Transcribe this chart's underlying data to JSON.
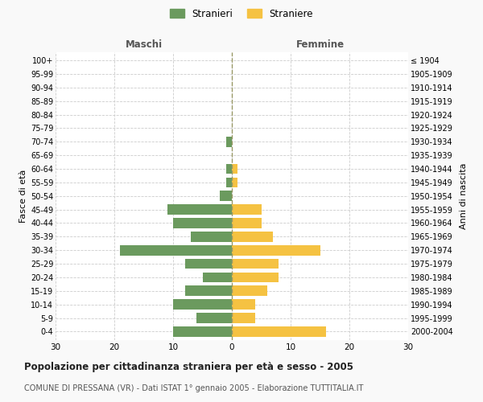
{
  "age_groups": [
    "0-4",
    "5-9",
    "10-14",
    "15-19",
    "20-24",
    "25-29",
    "30-34",
    "35-39",
    "40-44",
    "45-49",
    "50-54",
    "55-59",
    "60-64",
    "65-69",
    "70-74",
    "75-79",
    "80-84",
    "85-89",
    "90-94",
    "95-99",
    "100+"
  ],
  "birth_years": [
    "2000-2004",
    "1995-1999",
    "1990-1994",
    "1985-1989",
    "1980-1984",
    "1975-1979",
    "1970-1974",
    "1965-1969",
    "1960-1964",
    "1955-1959",
    "1950-1954",
    "1945-1949",
    "1940-1944",
    "1935-1939",
    "1930-1934",
    "1925-1929",
    "1920-1924",
    "1915-1919",
    "1910-1914",
    "1905-1909",
    "≤ 1904"
  ],
  "males": [
    10,
    6,
    10,
    8,
    5,
    8,
    19,
    7,
    10,
    11,
    2,
    1,
    1,
    0,
    1,
    0,
    0,
    0,
    0,
    0,
    0
  ],
  "females": [
    16,
    4,
    4,
    6,
    8,
    8,
    15,
    7,
    5,
    5,
    0,
    1,
    1,
    0,
    0,
    0,
    0,
    0,
    0,
    0,
    0
  ],
  "male_color": "#6b9a5e",
  "female_color": "#f5c242",
  "title": "Popolazione per cittadinanza straniera per età e sesso - 2005",
  "subtitle": "COMUNE DI PRESSANA (VR) - Dati ISTAT 1° gennaio 2005 - Elaborazione TUTTITALIA.IT",
  "xlabel_left": "Maschi",
  "xlabel_right": "Femmine",
  "ylabel_left": "Fasce di età",
  "ylabel_right": "Anni di nascita",
  "legend_stranieri": "Stranieri",
  "legend_straniere": "Straniere",
  "xlim": 30,
  "background_color": "#f9f9f9",
  "plot_background": "#ffffff",
  "grid_color": "#cccccc"
}
